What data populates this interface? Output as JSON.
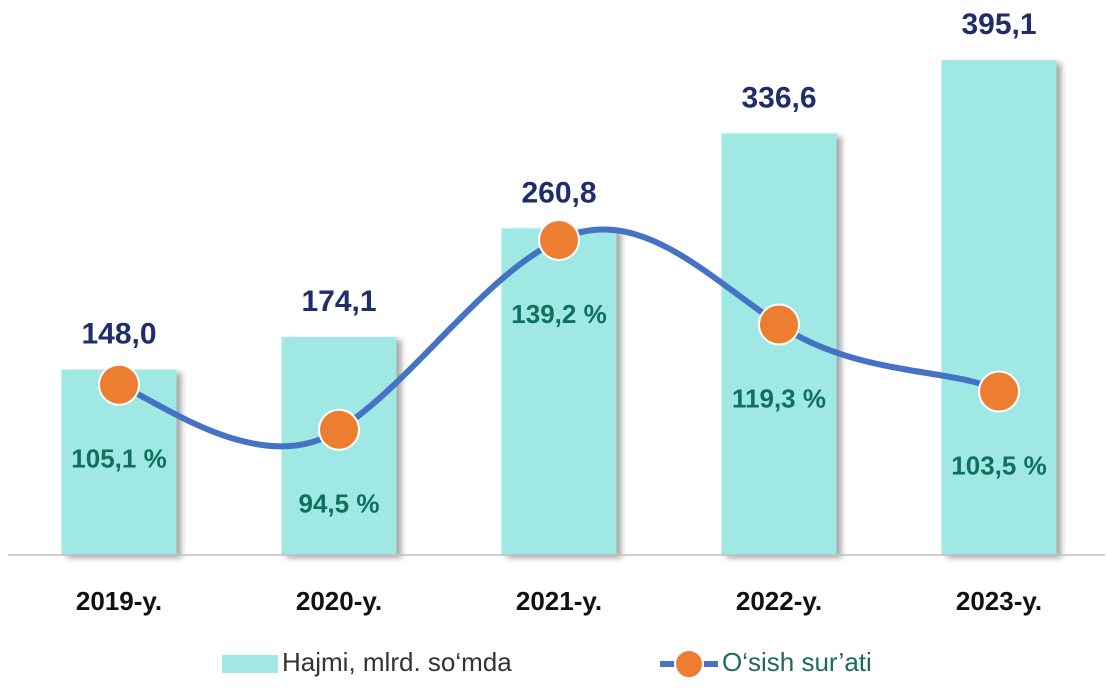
{
  "chart_data": {
    "type": "bar_line",
    "categories": [
      "2019-y.",
      "2020-y.",
      "2021-y.",
      "2022-y.",
      "2023-y."
    ],
    "series": [
      {
        "name": "Hajmi, mlrd. so‘mda",
        "type": "bar",
        "color": "#a0e8e4",
        "values": [
          148.0,
          174.1,
          260.8,
          336.6,
          395.1
        ],
        "value_labels": [
          "148,0",
          "174,1",
          "260,8",
          "336,6",
          "395,1"
        ]
      },
      {
        "name": "O‘sish sur’ati",
        "type": "line",
        "axis": "y2",
        "color": "#4472c4",
        "marker_color": "#ed7d31",
        "values": [
          105.1,
          94.5,
          139.2,
          119.3,
          103.5
        ],
        "value_labels": [
          "105,1 %",
          "94,5 %",
          "139,2 %",
          "119,3 %",
          "103,5 %"
        ]
      }
    ],
    "ylim": [
      0,
      400
    ],
    "y2lim": [
      65,
      183
    ],
    "legend": "bottom"
  }
}
